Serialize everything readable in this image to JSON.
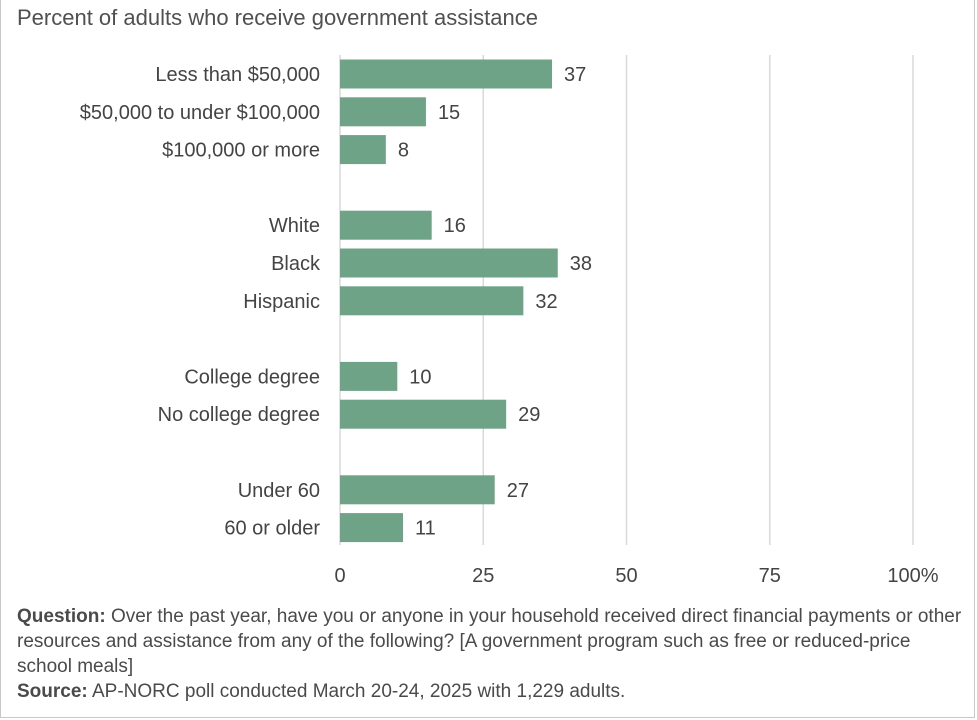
{
  "subtitle": "Percent of adults who receive government assistance",
  "colors": {
    "bar": "#6fa387",
    "grid": "#d9d9d9",
    "text": "#444444"
  },
  "chart_data": {
    "type": "bar",
    "orientation": "horizontal",
    "title": "",
    "subtitle": "Percent of adults who receive government assistance",
    "xlim": [
      0,
      100
    ],
    "x_ticks": [
      "0",
      "25",
      "50",
      "75",
      "100%"
    ],
    "x_tick_values": [
      0,
      25,
      50,
      75,
      100
    ],
    "grid": true,
    "groups": [
      {
        "categories": [
          "Less than $50,000",
          "$50,000 to under $100,000",
          "$100,000 or more"
        ],
        "values": [
          37,
          15,
          8
        ]
      },
      {
        "categories": [
          "White",
          "Black",
          "Hispanic"
        ],
        "values": [
          16,
          38,
          32
        ]
      },
      {
        "categories": [
          "College degree",
          "No college degree"
        ],
        "values": [
          10,
          29
        ]
      },
      {
        "categories": [
          "Under 60",
          "60 or older"
        ],
        "values": [
          27,
          11
        ]
      }
    ]
  },
  "notes": {
    "question_label": "Question:",
    "question_text": " Over the past year, have you or anyone in your household received direct financial payments or other resources and assistance from any of the following? [A government program such as free or reduced-price school meals]",
    "source_label": "Source:",
    "source_text": " AP-NORC poll conducted March 20-24, 2025 with 1,229 adults."
  }
}
